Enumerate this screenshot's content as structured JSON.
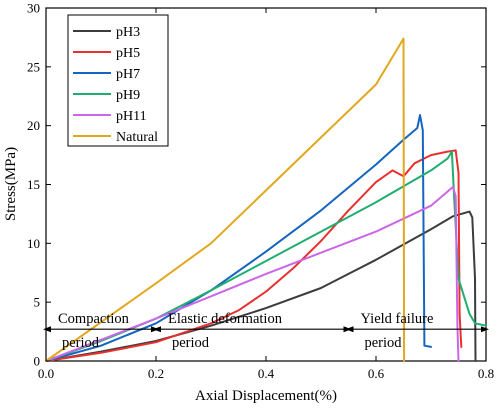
{
  "chart_data": {
    "type": "line",
    "title": "",
    "xlabel": "Axial Displacement(%)",
    "ylabel": "Stress(MPa)",
    "xlim": [
      0,
      0.8
    ],
    "ylim": [
      0,
      30
    ],
    "xticks": [
      0.0,
      0.2,
      0.4,
      0.6,
      0.8
    ],
    "xtick_labels": [
      "0.0",
      "0.2",
      "0.4",
      "0.6",
      "0.8"
    ],
    "yticks": [
      0,
      5,
      10,
      15,
      20,
      25,
      30
    ],
    "ytick_labels": [
      "0",
      "5",
      "10",
      "15",
      "20",
      "25",
      "30"
    ],
    "grid": false,
    "legend_position": "top-left",
    "series": [
      {
        "name": "pH3",
        "color": "#3c3c3c",
        "x": [
          0,
          0.1,
          0.2,
          0.3,
          0.4,
          0.5,
          0.55,
          0.6,
          0.65,
          0.7,
          0.74,
          0.77,
          0.775,
          0.78,
          0.781
        ],
        "y": [
          0,
          0.8,
          1.7,
          3.0,
          4.5,
          6.2,
          7.4,
          8.6,
          9.9,
          11.2,
          12.3,
          12.7,
          12.2,
          7.0,
          0.0
        ]
      },
      {
        "name": "pH5",
        "color": "#e8312f",
        "x": [
          0,
          0.1,
          0.2,
          0.3,
          0.35,
          0.4,
          0.45,
          0.5,
          0.55,
          0.6,
          0.63,
          0.65,
          0.67,
          0.7,
          0.73,
          0.745,
          0.75,
          0.752,
          0.755
        ],
        "y": [
          0,
          0.7,
          1.6,
          3.2,
          4.3,
          5.9,
          7.9,
          10.2,
          12.8,
          15.2,
          16.2,
          15.7,
          16.8,
          17.5,
          17.8,
          17.9,
          16.0,
          4.0,
          1.2
        ]
      },
      {
        "name": "pH7",
        "color": "#1565c0",
        "x": [
          0,
          0.1,
          0.2,
          0.3,
          0.4,
          0.5,
          0.6,
          0.65,
          0.675,
          0.68,
          0.685,
          0.688,
          0.7
        ],
        "y": [
          0,
          1.3,
          3.2,
          6.0,
          9.3,
          12.8,
          16.7,
          18.8,
          19.8,
          20.9,
          19.6,
          1.3,
          1.2
        ]
      },
      {
        "name": "pH9",
        "color": "#1fae6f",
        "x": [
          0,
          0.1,
          0.2,
          0.3,
          0.4,
          0.5,
          0.6,
          0.7,
          0.73,
          0.738,
          0.742,
          0.75,
          0.76,
          0.77,
          0.78,
          0.8
        ],
        "y": [
          0,
          1.7,
          3.6,
          6.0,
          8.5,
          11.0,
          13.5,
          16.2,
          17.2,
          17.8,
          14.0,
          7.0,
          5.5,
          4.0,
          3.2,
          3.0
        ]
      },
      {
        "name": "pH11",
        "color": "#cc66e8",
        "x": [
          0,
          0.1,
          0.2,
          0.3,
          0.4,
          0.5,
          0.6,
          0.7,
          0.74,
          0.745,
          0.748,
          0.75
        ],
        "y": [
          0,
          1.8,
          3.6,
          5.5,
          7.4,
          9.2,
          11.0,
          13.2,
          14.8,
          14.0,
          3.0,
          0.0
        ]
      },
      {
        "name": "Natural",
        "color": "#e1a71e",
        "x": [
          0,
          0.1,
          0.2,
          0.3,
          0.4,
          0.5,
          0.6,
          0.65,
          0.651
        ],
        "y": [
          0,
          3.3,
          6.6,
          10.0,
          14.5,
          19.0,
          23.5,
          27.4,
          0.0
        ]
      }
    ],
    "annotations": [
      {
        "label": "Compaction\nperiod",
        "span": [
          0.0,
          0.2
        ],
        "y": 2.7
      },
      {
        "label": "Elastic deformation\nperiod",
        "span": [
          0.2,
          0.55
        ],
        "y": 2.7
      },
      {
        "label": "Yield failure\nperiod",
        "span": [
          0.55,
          0.8
        ],
        "y": 2.7
      }
    ]
  }
}
